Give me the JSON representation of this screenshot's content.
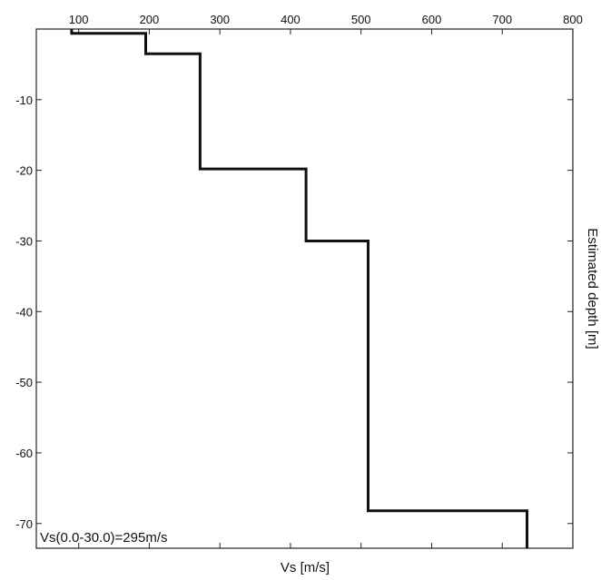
{
  "chart_data": {
    "type": "line",
    "title": "",
    "xlabel": "Vs [m/s]",
    "ylabel": "Estimated depth [m]",
    "xlim": [
      40,
      800
    ],
    "ylim": [
      -73.5,
      0
    ],
    "x_ticks": [
      100,
      200,
      300,
      400,
      500,
      600,
      700,
      800
    ],
    "y_ticks": [
      -10,
      -20,
      -30,
      -40,
      -50,
      -60,
      -70
    ],
    "x_axis_position": "top",
    "y_label_position": "right",
    "grid": false,
    "legend": "none",
    "series": [
      {
        "style": "step profile",
        "color": "#111111",
        "points": [
          {
            "x": 90,
            "y": 0
          },
          {
            "x": 90,
            "y": -0.6
          },
          {
            "x": 195,
            "y": -0.6
          },
          {
            "x": 195,
            "y": -3.5
          },
          {
            "x": 272,
            "y": -3.5
          },
          {
            "x": 272,
            "y": -19.8
          },
          {
            "x": 422,
            "y": -19.8
          },
          {
            "x": 422,
            "y": -30.0
          },
          {
            "x": 510,
            "y": -30.0
          },
          {
            "x": 510,
            "y": -68.2
          },
          {
            "x": 735,
            "y": -68.2
          },
          {
            "x": 735,
            "y": -73.5
          }
        ]
      }
    ],
    "annotation": "Vs(0.0-30.0)=295m/s"
  }
}
